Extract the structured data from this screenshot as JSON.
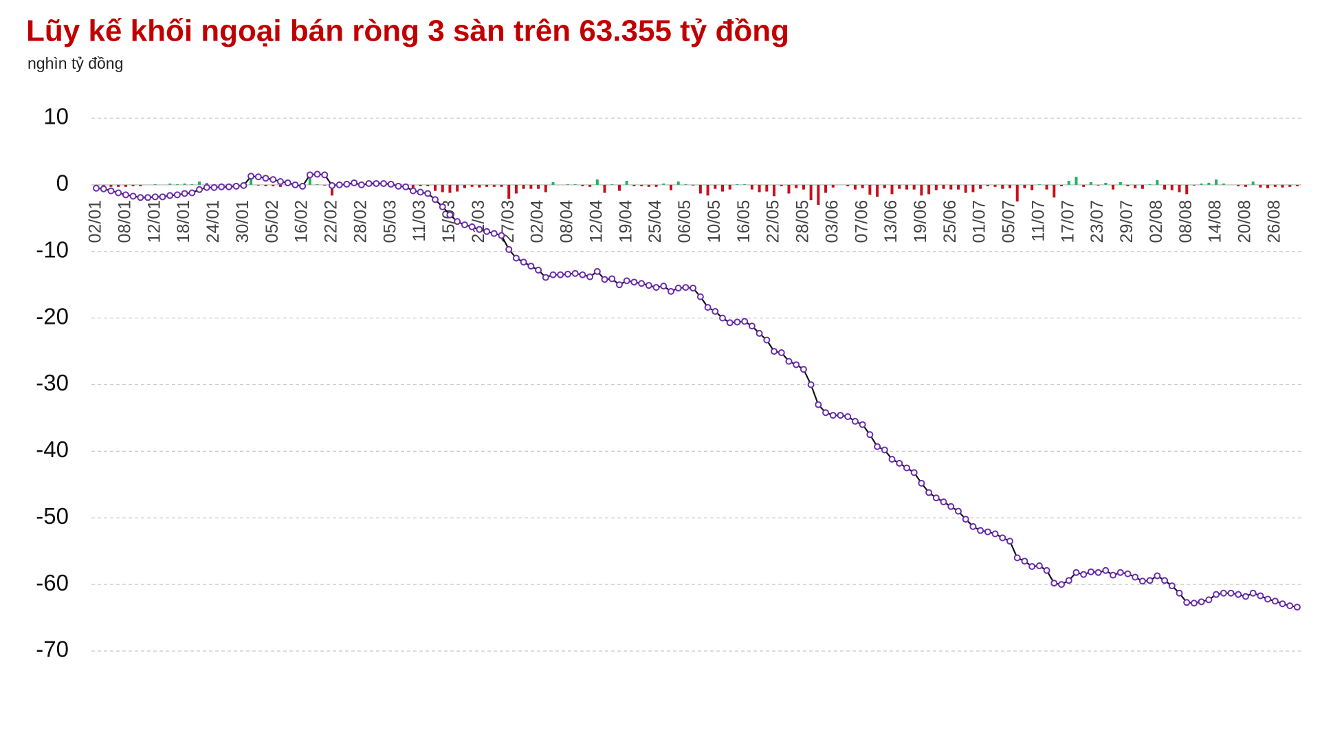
{
  "chart_data": {
    "type": "combo",
    "title": "Lũy kế khối ngoại bán ròng 3 sàn trên 63.355 tỷ đồng",
    "subtitle": "nghìn tỷ đồng",
    "ylim": [
      -70,
      10
    ],
    "yticks": [
      10,
      0,
      -10,
      -20,
      -30,
      -40,
      -50,
      -60,
      -70
    ],
    "grid": true,
    "categories": [
      "02/01",
      null,
      null,
      null,
      "08/01",
      null,
      null,
      null,
      "12/01",
      null,
      null,
      null,
      "18/01",
      null,
      null,
      null,
      "24/01",
      null,
      null,
      null,
      "30/01",
      null,
      null,
      null,
      "05/02",
      null,
      null,
      null,
      "16/02",
      null,
      null,
      null,
      "22/02",
      null,
      null,
      null,
      "28/02",
      null,
      null,
      null,
      "05/03",
      null,
      null,
      null,
      "11/03",
      null,
      null,
      null,
      "15/03",
      null,
      null,
      null,
      "21/03",
      null,
      null,
      null,
      "27/03",
      null,
      null,
      null,
      "02/04",
      null,
      null,
      null,
      "08/04",
      null,
      null,
      null,
      "12/04",
      null,
      null,
      null,
      "19/04",
      null,
      null,
      null,
      "25/04",
      null,
      null,
      null,
      "06/05",
      null,
      null,
      null,
      "10/05",
      null,
      null,
      null,
      "16/05",
      null,
      null,
      null,
      "22/05",
      null,
      null,
      null,
      "28/05",
      null,
      null,
      null,
      "03/06",
      null,
      null,
      null,
      "07/06",
      null,
      null,
      null,
      "13/06",
      null,
      null,
      null,
      "19/06",
      null,
      null,
      null,
      "25/06",
      null,
      null,
      null,
      "01/07",
      null,
      null,
      null,
      "05/07",
      null,
      null,
      null,
      "11/07",
      null,
      null,
      null,
      "17/07",
      null,
      null,
      null,
      "23/07",
      null,
      null,
      null,
      "29/07",
      null,
      null,
      null,
      "02/08",
      null,
      null,
      null,
      "08/08",
      null,
      null,
      null,
      "14/08",
      null,
      null,
      null,
      "20/08",
      null,
      null,
      null,
      "26/08",
      null,
      null,
      null
    ],
    "series": [
      {
        "type": "bar",
        "positive_color": "#27ae60",
        "negative_color": "#c8101a",
        "values": [
          -0.5,
          -0.1,
          -0.3,
          -0.3,
          -0.3,
          -0.2,
          -0.2,
          0,
          0.1,
          0,
          0.2,
          0.1,
          0.2,
          0.1,
          0.5,
          0.3,
          0,
          0.1,
          0,
          0.1,
          0.1,
          1.4,
          -0.1,
          -0.2,
          -0.2,
          -0.3,
          -0.2,
          -0.3,
          -0.2,
          1.7,
          0.1,
          -0.1,
          -1.6,
          0.1,
          0.1,
          0.2,
          -0.3,
          0.2,
          0,
          0,
          -0.1,
          -0.3,
          -0.1,
          -0.6,
          -0.2,
          -0.2,
          -0.9,
          -1.1,
          -1.2,
          -1.0,
          -0.5,
          -0.3,
          -0.4,
          -0.3,
          -0.3,
          -0.3,
          -2.1,
          -1.3,
          -0.6,
          -0.6,
          -0.6,
          -1.1,
          0.4,
          0,
          0.1,
          0.1,
          -0.2,
          -0.3,
          0.8,
          -1.2,
          0.1,
          -0.9,
          0.6,
          -0.2,
          -0.2,
          -0.3,
          -0.3,
          0.2,
          -0.8,
          0.5,
          0.1,
          -0.1,
          -1.3,
          -1.6,
          -0.6,
          -1.0,
          -0.7,
          0.1,
          0.1,
          -0.7,
          -1.1,
          -1.0,
          -1.7,
          -0.2,
          -1.3,
          -0.5,
          -0.7,
          -2.3,
          -3.0,
          -1.2,
          -0.4,
          0,
          -0.2,
          -0.7,
          -0.5,
          -1.5,
          -1.8,
          -0.5,
          -1.4,
          -0.6,
          -0.7,
          -0.7,
          -1.6,
          -1.4,
          -0.8,
          -0.6,
          -0.7,
          -0.7,
          -1.2,
          -1.1,
          -0.6,
          -0.2,
          -0.3,
          -0.6,
          -0.5,
          -2.5,
          -0.5,
          -0.8,
          0.1,
          -0.7,
          -1.9,
          -0.2,
          0.6,
          1.2,
          -0.3,
          0.4,
          -0.1,
          0.3,
          -0.7,
          0.4,
          -0.2,
          -0.5,
          -0.6,
          0.1,
          0.7,
          -0.7,
          -0.8,
          -1.1,
          -1.4,
          -0.1,
          0.2,
          0.3,
          0.8,
          0.2,
          0,
          -0.2,
          -0.3,
          0.5,
          -0.4,
          -0.5,
          -0.3,
          -0.4,
          -0.3,
          -0.2
        ]
      },
      {
        "type": "line",
        "color": "#111111",
        "marker_color": "#6b2fb0",
        "values": [
          -0.5,
          -0.6,
          -0.9,
          -1.2,
          -1.5,
          -1.7,
          -1.9,
          -1.9,
          -1.8,
          -1.8,
          -1.6,
          -1.5,
          -1.3,
          -1.2,
          -0.7,
          -0.4,
          -0.4,
          -0.3,
          -0.3,
          -0.2,
          -0.1,
          1.3,
          1.2,
          1.0,
          0.8,
          0.5,
          0.3,
          0,
          -0.2,
          1.5,
          1.6,
          1.5,
          -0.1,
          0,
          0.1,
          0.3,
          0,
          0.2,
          0.2,
          0.2,
          0.1,
          -0.2,
          -0.3,
          -0.9,
          -1.1,
          -1.3,
          -2.2,
          -3.3,
          -4.5,
          -5.5,
          -6.0,
          -6.3,
          -6.7,
          -7.0,
          -7.3,
          -7.6,
          -9.7,
          -11.0,
          -11.6,
          -12.2,
          -12.8,
          -13.9,
          -13.5,
          -13.5,
          -13.4,
          -13.3,
          -13.5,
          -13.8,
          -13.0,
          -14.2,
          -14.1,
          -15.0,
          -14.4,
          -14.6,
          -14.8,
          -15.1,
          -15.4,
          -15.2,
          -16.0,
          -15.5,
          -15.4,
          -15.5,
          -16.8,
          -18.4,
          -19.0,
          -20.0,
          -20.7,
          -20.6,
          -20.5,
          -21.2,
          -22.3,
          -23.3,
          -25.0,
          -25.2,
          -26.5,
          -27.0,
          -27.7,
          -30.0,
          -33.0,
          -34.2,
          -34.6,
          -34.6,
          -34.8,
          -35.5,
          -36.0,
          -37.5,
          -39.3,
          -39.8,
          -41.2,
          -41.8,
          -42.5,
          -43.2,
          -44.8,
          -46.2,
          -47.0,
          -47.6,
          -48.3,
          -49.0,
          -50.2,
          -51.3,
          -51.9,
          -52.1,
          -52.4,
          -53.0,
          -53.5,
          -56.0,
          -56.5,
          -57.3,
          -57.2,
          -57.9,
          -59.8,
          -60.0,
          -59.4,
          -58.2,
          -58.5,
          -58.1,
          -58.2,
          -57.9,
          -58.6,
          -58.2,
          -58.4,
          -58.9,
          -59.5,
          -59.4,
          -58.7,
          -59.4,
          -60.2,
          -61.3,
          -62.7,
          -62.8,
          -62.6,
          -62.3,
          -61.5,
          -61.3,
          -61.3,
          -61.5,
          -61.8,
          -61.3,
          -61.7,
          -62.2,
          -62.5,
          -62.9,
          -63.2,
          -63.4
        ]
      }
    ]
  }
}
